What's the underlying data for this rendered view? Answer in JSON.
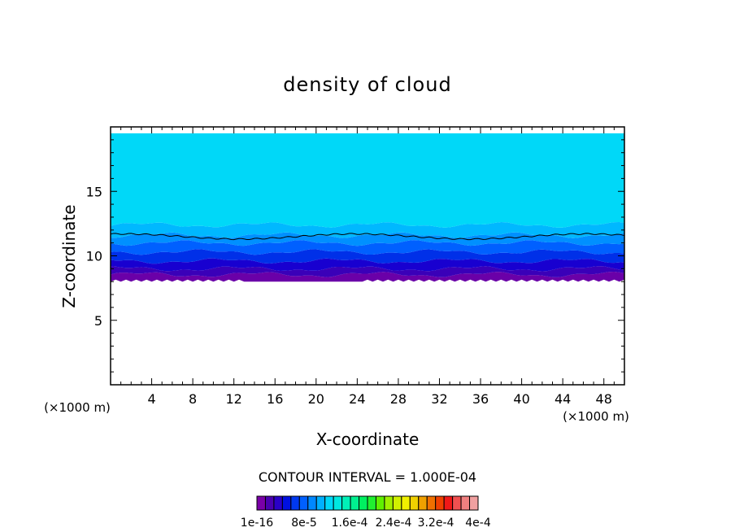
{
  "chart_data": {
    "type": "contour",
    "title": "density of cloud",
    "xlabel": "X-coordinate",
    "ylabel": "Z-coordinate",
    "x_unit_label": "(×1000 m)",
    "x_unit_label_right": "(×1000 m)",
    "xlim": [
      0,
      50
    ],
    "ylim": [
      0,
      20
    ],
    "x_ticks": [
      4,
      8,
      12,
      16,
      20,
      24,
      28,
      32,
      36,
      40,
      44,
      48
    ],
    "y_ticks": [
      5,
      10,
      15
    ],
    "contour_interval_text": "CONTOUR INTERVAL = 1.000E-04",
    "colorbar": {
      "colors": [
        "#7a00a8",
        "#4a00b0",
        "#2a00c8",
        "#0010e0",
        "#0038f0",
        "#0060ff",
        "#0088ff",
        "#00b0ff",
        "#00d8f8",
        "#00e8e0",
        "#00f0b8",
        "#00f090",
        "#00f060",
        "#20f030",
        "#60f000",
        "#a0f000",
        "#d0f000",
        "#f0f000",
        "#f0d000",
        "#f0a000",
        "#f07000",
        "#f04000",
        "#f01818",
        "#f05050",
        "#f08080",
        "#f0a0a0"
      ],
      "labels": [
        "1e-16",
        "8e-5",
        "1.6e-4",
        "2.4e-4",
        "3.2e-4",
        "4e-4"
      ]
    },
    "cloud_layer": {
      "base_km": 8.0,
      "top_km": 19.5,
      "contour_line_km": 11.5
    }
  }
}
